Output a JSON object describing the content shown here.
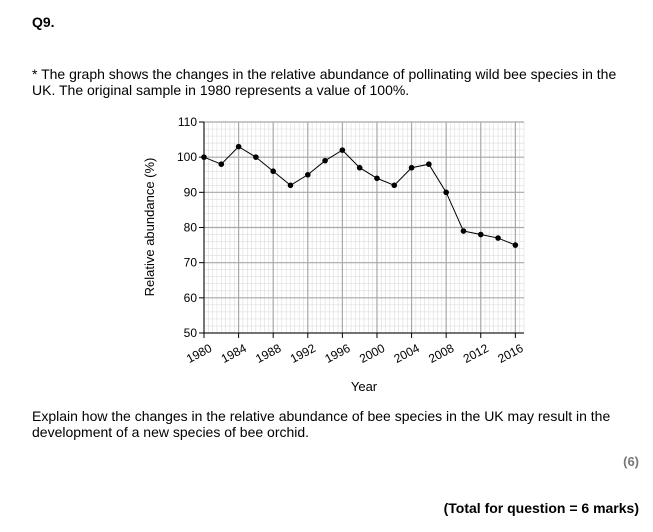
{
  "question": {
    "number": "Q9.",
    "intro": "* The graph shows the changes in the relative abundance of pollinating wild bee species in the UK. The original sample in 1980 represents a value of 100%.",
    "prompt": "Explain how the changes in the relative abundance of bee species in the UK may result in the development of a new species of bee orchid.",
    "marks": "(6)",
    "total": "(Total for question = 6 marks)"
  },
  "chart_data": {
    "type": "line",
    "xlabel": "Year",
    "ylabel": "Relative abundance (%)",
    "xlim": [
      1980,
      2017
    ],
    "ylim": [
      50,
      110
    ],
    "x_ticks": [
      1980,
      1984,
      1988,
      1992,
      1996,
      2000,
      2004,
      2008,
      2012,
      2016
    ],
    "y_ticks": [
      50,
      60,
      70,
      80,
      90,
      100,
      110
    ],
    "grid": true,
    "x": [
      1980,
      1982,
      1984,
      1986,
      1988,
      1990,
      1992,
      1994,
      1996,
      1998,
      2000,
      2002,
      2004,
      2006,
      2008,
      2010,
      2012,
      2014,
      2016
    ],
    "y": [
      100,
      98,
      103,
      100,
      96,
      92,
      95,
      99,
      102,
      97,
      94,
      92,
      97,
      98,
      90,
      79,
      78,
      77,
      75
    ]
  }
}
